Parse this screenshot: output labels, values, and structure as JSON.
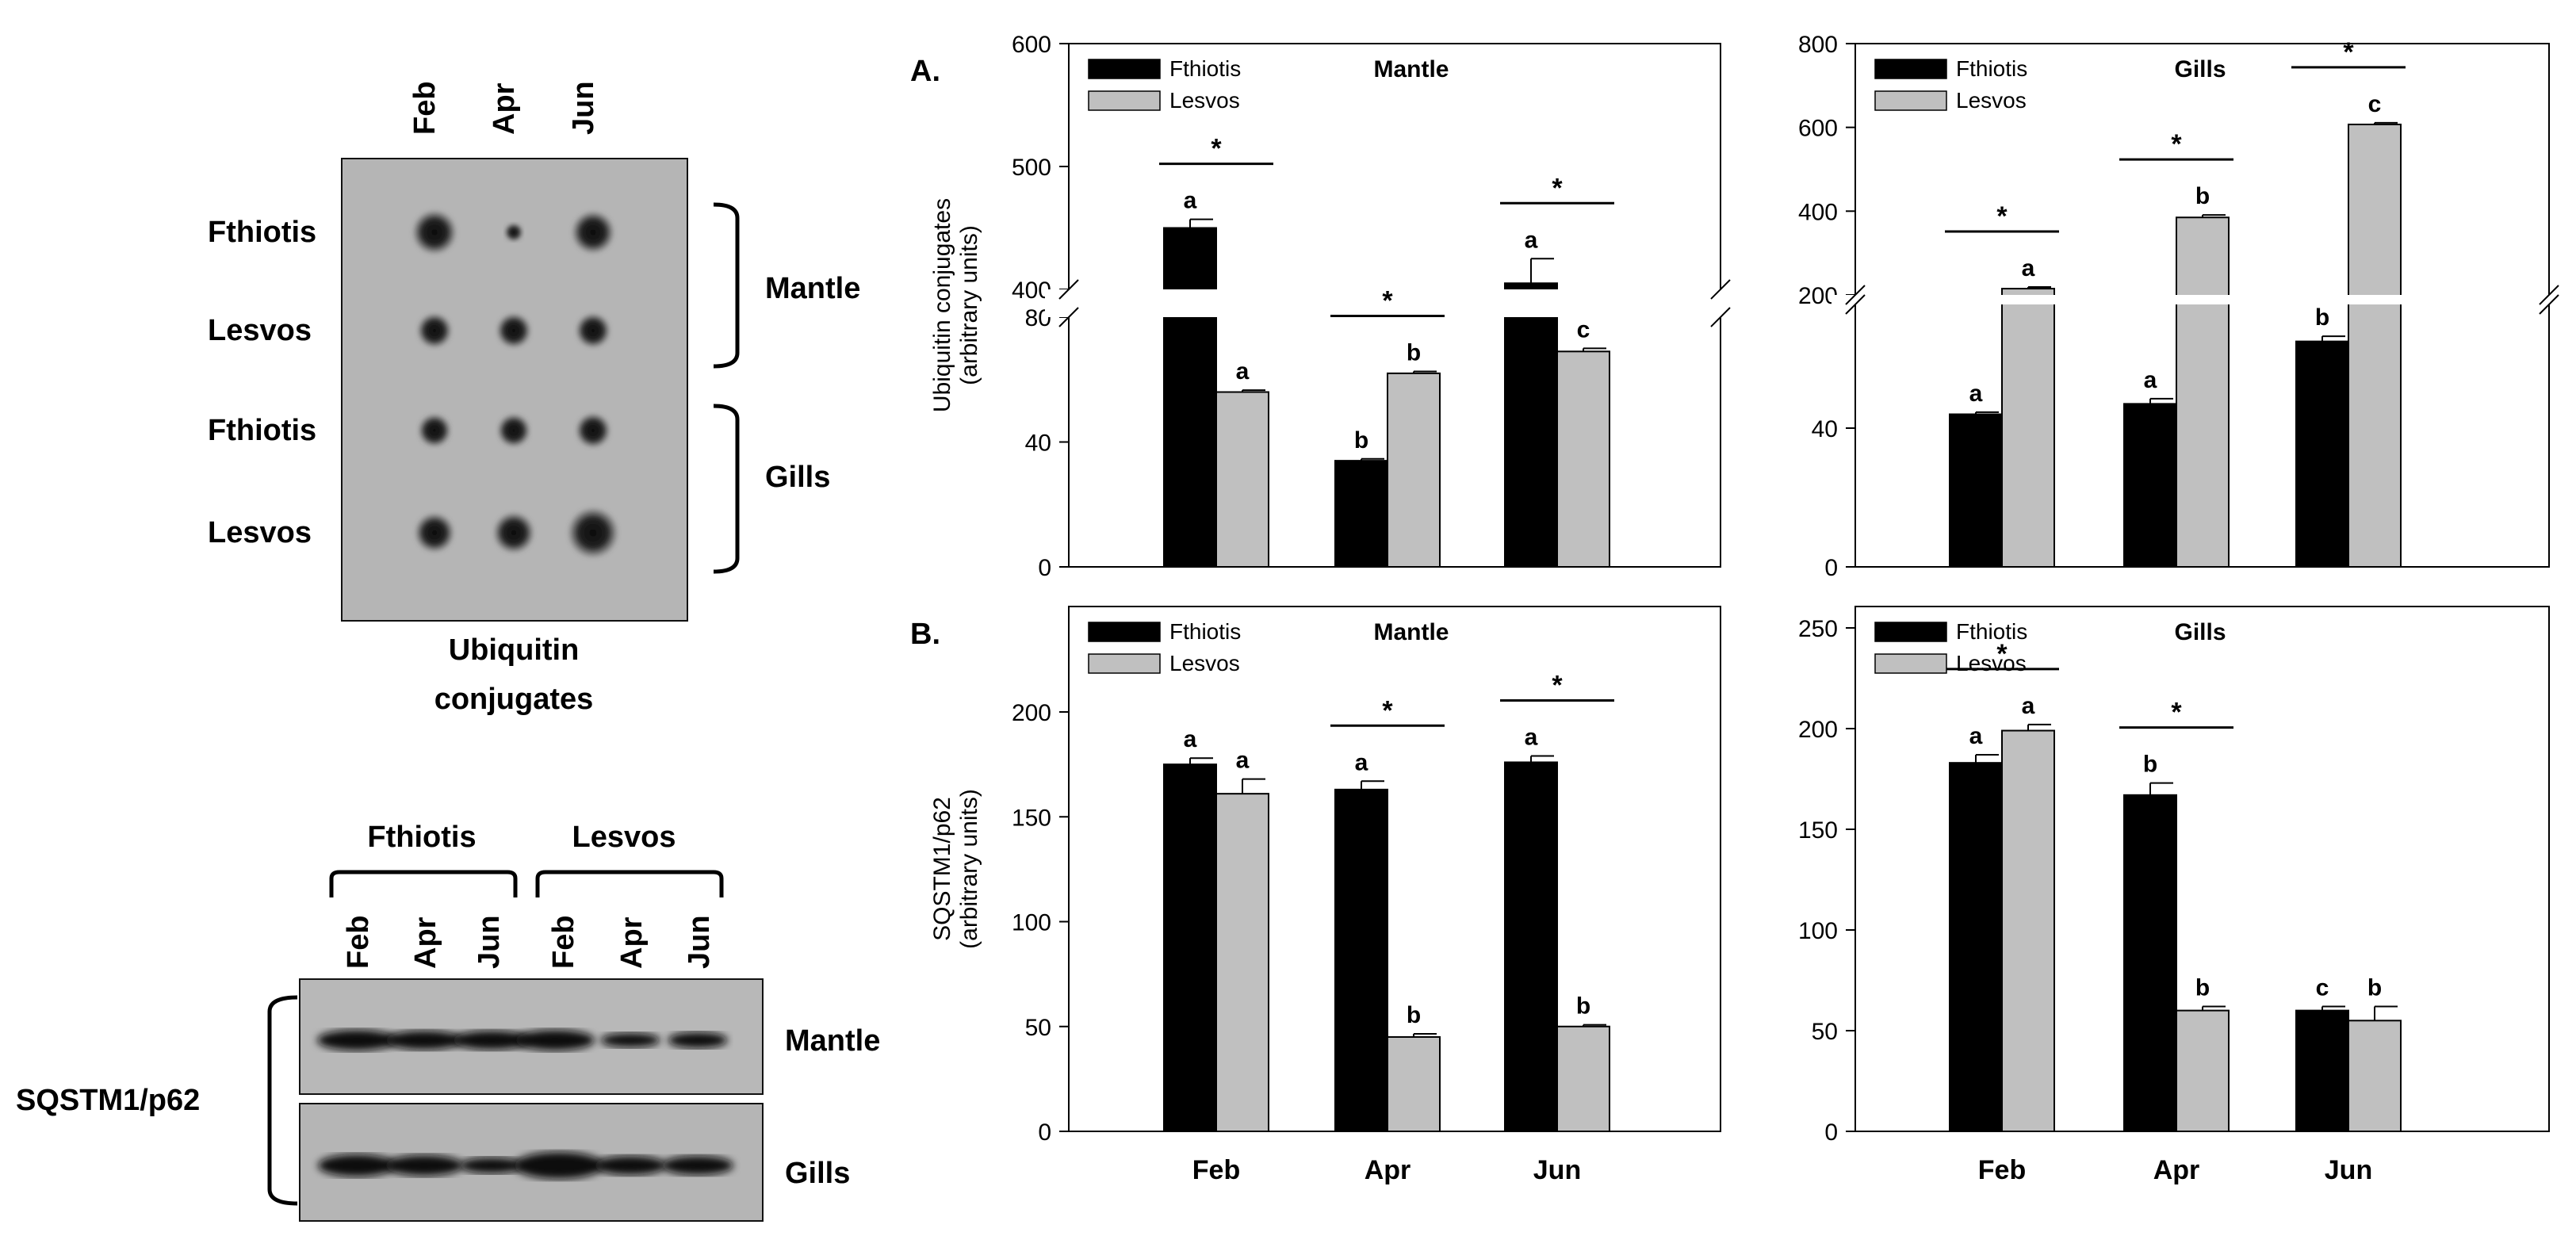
{
  "blots": {
    "dot_blot": {
      "months": [
        "Feb",
        "Apr",
        "Jun"
      ],
      "rows": [
        "Fthiotis",
        "Lesvos",
        "Fthiotis",
        "Lesvos"
      ],
      "tissues": [
        "Mantle",
        "Gills"
      ],
      "caption": [
        "Ubiquitin",
        "conjugates"
      ]
    },
    "western": {
      "groups": [
        "Fthiotis",
        "Lesvos"
      ],
      "lanes": [
        "Feb",
        "Apr",
        "Jun",
        "Feb",
        "Apr",
        "Jun"
      ],
      "tissues": [
        "Mantle",
        "Gills"
      ],
      "protein": "SQSTM1/p62"
    }
  },
  "panel_labels": {
    "a": "A.",
    "b": "B."
  },
  "chart_data": [
    {
      "type": "bar",
      "title": "Mantle",
      "ylabel": [
        "Ubiquitin conjugates",
        "(arbitrary units)"
      ],
      "categories": [
        "Feb",
        "Apr",
        "Jun"
      ],
      "series": [
        {
          "name": "Fthiotis",
          "color": "#000000",
          "values": [
            450,
            34,
            405
          ],
          "errors": [
            7,
            0.6,
            20
          ],
          "letters": [
            "a",
            "b",
            "a"
          ]
        },
        {
          "name": "Lesvos",
          "color": "#c0c0c0",
          "values": [
            56,
            62,
            69
          ],
          "errors": [
            0.6,
            0.6,
            1
          ],
          "letters": [
            "a",
            "b",
            "c"
          ]
        }
      ],
      "broken_axis": {
        "lower_ticks": [
          0,
          40,
          80
        ],
        "upper_ticks": [
          400,
          500,
          600
        ]
      },
      "significance": [
        "*",
        "*",
        "*"
      ],
      "show_x_labels": false
    },
    {
      "type": "bar",
      "title": "Gills",
      "categories": [
        "Feb",
        "Apr",
        "Jun"
      ],
      "series": [
        {
          "name": "Fthiotis",
          "color": "#000000",
          "values": [
            44,
            47,
            65
          ],
          "errors": [
            0.6,
            1.5,
            1.5
          ],
          "letters": [
            "a",
            "a",
            "b"
          ]
        },
        {
          "name": "Lesvos",
          "color": "#c0c0c0",
          "values": [
            215,
            385,
            607
          ],
          "errors": [
            4,
            6,
            4
          ],
          "letters": [
            "a",
            "b",
            "c"
          ]
        }
      ],
      "broken_axis": {
        "lower_ticks": [
          0,
          40
        ],
        "upper_ticks": [
          200,
          400,
          600,
          800
        ]
      },
      "significance": [
        "*",
        "*",
        "*"
      ],
      "show_x_labels": false
    },
    {
      "type": "bar",
      "title": "Mantle",
      "ylabel": [
        "SQSTM1/p62",
        "(arbitrary units)"
      ],
      "categories": [
        "Feb",
        "Apr",
        "Jun"
      ],
      "series": [
        {
          "name": "Fthiotis",
          "color": "#000000",
          "values": [
            175,
            163,
            176
          ],
          "errors": [
            3,
            4,
            3
          ],
          "letters": [
            "a",
            "a",
            "a"
          ]
        },
        {
          "name": "Lesvos",
          "color": "#c0c0c0",
          "values": [
            161,
            45,
            50
          ],
          "errors": [
            7,
            1.5,
            0.8
          ],
          "letters": [
            "a",
            "b",
            "b"
          ]
        }
      ],
      "yticks": [
        0,
        50,
        100,
        150,
        200
      ],
      "significance": [
        "",
        "*",
        "*"
      ],
      "show_x_labels": true
    },
    {
      "type": "bar",
      "title": "Gills",
      "categories": [
        "Feb",
        "Apr",
        "Jun"
      ],
      "series": [
        {
          "name": "Fthiotis",
          "color": "#000000",
          "values": [
            183,
            167,
            60
          ],
          "errors": [
            4,
            6,
            2
          ],
          "letters": [
            "a",
            "b",
            "c"
          ]
        },
        {
          "name": "Lesvos",
          "color": "#c0c0c0",
          "values": [
            199,
            60,
            55
          ],
          "errors": [
            3,
            2,
            7
          ],
          "letters": [
            "a",
            "b",
            "b"
          ]
        }
      ],
      "yticks": [
        0,
        50,
        100,
        150,
        200,
        250
      ],
      "significance": [
        "*",
        "*",
        ""
      ],
      "show_x_labels": true
    }
  ]
}
